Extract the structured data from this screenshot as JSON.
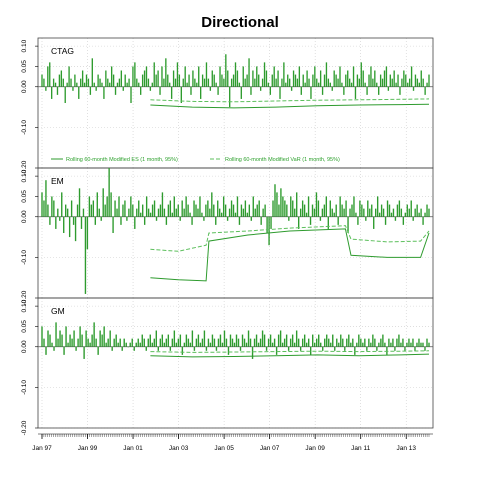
{
  "chart_data": {
    "type": "bar",
    "title": "Directional",
    "x_ticks": [
      "Jan 97",
      "Jan 99",
      "Jan 01",
      "Jan 03",
      "Jan 05",
      "Jan 07",
      "Jan 09",
      "Jan 11",
      "Jan 13"
    ],
    "x_range": [
      "1997-01",
      "2013-12"
    ],
    "grid": true,
    "series_style": {
      "bars": "#2e9b2e",
      "es": "#2e9b2e",
      "var": "#5cbf5c"
    },
    "legend": {
      "placement": "bottom of first panel",
      "es": "Rolling 60-month Modified ES (1 month, 95%)",
      "var": "Rolling 60-month Modified VaR (1 month, 95%)"
    },
    "panels": [
      {
        "name": "CTAG",
        "ylim": [
          -0.2,
          0.12
        ],
        "y_ticks": [
          "0.10",
          "0.05",
          "0.00",
          "-0.10",
          "-0.20"
        ],
        "y_tick_values": [
          0.1,
          0.05,
          0.0,
          -0.1,
          -0.2
        ],
        "returns": [
          0.03,
          0.02,
          -0.01,
          0.05,
          0.06,
          -0.03,
          0.02,
          0.01,
          -0.02,
          0.03,
          0.04,
          0.02,
          -0.04,
          0.01,
          0.05,
          0.02,
          -0.01,
          0.03,
          0.01,
          -0.03,
          0.02,
          0.04,
          0.01,
          0.03,
          0.02,
          -0.02,
          0.07,
          0.01,
          -0.01,
          0.03,
          0.02,
          0.01,
          -0.03,
          0.04,
          0.02,
          0.01,
          0.05,
          0.03,
          -0.02,
          0.01,
          0.02,
          0.04,
          -0.01,
          0.03,
          0.01,
          0.02,
          -0.04,
          0.05,
          0.06,
          0.02,
          0.01,
          -0.02,
          0.03,
          0.04,
          0.05,
          0.02,
          -0.01,
          0.01,
          0.06,
          0.03,
          0.04,
          -0.02,
          0.05,
          0.02,
          0.07,
          0.03,
          0.01,
          -0.03,
          0.04,
          0.02,
          0.06,
          0.03,
          -0.04,
          0.02,
          0.05,
          0.01,
          0.03,
          -0.02,
          0.04,
          0.02,
          0.01,
          0.05,
          -0.03,
          0.03,
          0.02,
          0.06,
          0.02,
          -0.01,
          0.04,
          0.03,
          0.01,
          -0.02,
          0.05,
          0.03,
          0.02,
          0.08,
          0.04,
          -0.05,
          0.02,
          0.03,
          0.06,
          0.04,
          0.01,
          -0.03,
          0.05,
          0.02,
          0.03,
          0.07,
          -0.02,
          0.04,
          0.02,
          0.05,
          0.03,
          -0.01,
          0.02,
          0.06,
          0.04,
          0.01,
          -0.02,
          0.03,
          0.05,
          0.02,
          0.04,
          -0.03,
          0.02,
          0.06,
          0.01,
          0.03,
          0.02,
          -0.01,
          0.04,
          0.03,
          0.02,
          0.05,
          -0.02,
          0.03,
          0.01,
          0.04,
          0.02,
          -0.03,
          0.03,
          0.05,
          0.02,
          0.01,
          0.04,
          -0.02,
          0.03,
          0.06,
          0.02,
          0.01,
          -0.01,
          0.04,
          0.03,
          0.02,
          0.05,
          0.01,
          -0.02,
          0.03,
          0.04,
          0.02,
          0.01,
          0.05,
          -0.03,
          0.03,
          0.02,
          0.06,
          0.04,
          0.01,
          -0.02,
          0.03,
          0.05,
          0.02,
          0.04,
          0.01,
          -0.02,
          0.03,
          0.02,
          0.04,
          0.05,
          -0.01,
          0.03,
          0.02,
          0.04,
          0.01,
          0.03,
          -0.02,
          0.02,
          0.04,
          0.03,
          0.01,
          0.02,
          0.05,
          -0.01,
          0.03,
          0.02,
          0.01,
          0.04,
          0.02,
          -0.02,
          0.01,
          0.03
        ],
        "es_points": [
          [
            0.0,
            -0.045
          ],
          [
            0.15,
            -0.05
          ],
          [
            0.3,
            -0.052
          ],
          [
            0.45,
            -0.05
          ],
          [
            0.6,
            -0.047
          ],
          [
            0.75,
            -0.045
          ],
          [
            0.9,
            -0.044
          ],
          [
            1.0,
            -0.043
          ]
        ],
        "var_points": [
          [
            0.0,
            -0.032
          ],
          [
            0.15,
            -0.036
          ],
          [
            0.3,
            -0.037
          ],
          [
            0.45,
            -0.035
          ],
          [
            0.6,
            -0.033
          ],
          [
            0.75,
            -0.032
          ],
          [
            0.9,
            -0.031
          ],
          [
            1.0,
            -0.03
          ]
        ]
      },
      {
        "name": "EM",
        "ylim": [
          -0.2,
          0.12
        ],
        "y_ticks": [
          "0.10",
          "0.05",
          "0.00",
          "-0.10",
          "-0.20"
        ],
        "y_tick_values": [
          0.1,
          0.05,
          0.0,
          -0.1,
          -0.2
        ],
        "returns": [
          0.06,
          0.04,
          0.09,
          0.03,
          -0.02,
          0.05,
          0.04,
          -0.03,
          0.02,
          -0.01,
          0.06,
          -0.04,
          0.03,
          0.02,
          -0.05,
          0.04,
          -0.02,
          -0.06,
          0.03,
          0.07,
          -0.03,
          0.02,
          -0.19,
          -0.08,
          0.05,
          0.03,
          0.04,
          -0.02,
          0.06,
          0.02,
          -0.01,
          0.07,
          0.03,
          0.05,
          0.12,
          0.06,
          -0.04,
          0.04,
          0.02,
          0.05,
          -0.02,
          0.03,
          0.04,
          -0.01,
          0.02,
          0.05,
          0.03,
          -0.03,
          0.02,
          0.04,
          0.01,
          0.03,
          -0.02,
          0.05,
          0.02,
          0.01,
          0.03,
          0.04,
          -0.01,
          0.02,
          0.03,
          0.06,
          0.02,
          -0.02,
          0.03,
          0.04,
          0.01,
          0.05,
          0.02,
          0.03,
          -0.01,
          0.04,
          0.02,
          0.05,
          0.03,
          0.01,
          -0.02,
          0.04,
          0.03,
          0.02,
          0.05,
          0.01,
          -0.01,
          0.03,
          0.04,
          0.02,
          0.06,
          0.03,
          -0.02,
          0.04,
          0.02,
          0.01,
          0.05,
          0.03,
          -0.01,
          0.02,
          0.04,
          0.03,
          0.01,
          0.05,
          -0.02,
          0.03,
          0.02,
          0.04,
          0.01,
          0.03,
          -0.01,
          0.05,
          0.02,
          0.03,
          0.04,
          -0.02,
          0.02,
          0.03,
          -0.04,
          -0.07,
          -0.03,
          0.04,
          0.08,
          0.06,
          0.03,
          0.07,
          0.05,
          0.04,
          0.03,
          -0.01,
          0.05,
          0.04,
          0.02,
          0.06,
          -0.03,
          0.02,
          0.04,
          0.03,
          0.01,
          0.05,
          -0.02,
          0.03,
          0.02,
          0.06,
          0.04,
          -0.01,
          0.02,
          0.03,
          0.05,
          -0.03,
          0.04,
          0.02,
          0.01,
          0.03,
          -0.02,
          0.05,
          0.03,
          0.02,
          0.04,
          -0.04,
          0.02,
          0.03,
          0.05,
          0.01,
          -0.02,
          0.04,
          0.03,
          0.02,
          -0.01,
          0.04,
          0.02,
          0.03,
          -0.03,
          0.02,
          0.05,
          0.01,
          0.03,
          0.02,
          -0.02,
          0.04,
          0.03,
          0.01,
          0.02,
          -0.01,
          0.03,
          0.04,
          0.02,
          -0.02,
          0.01,
          0.03,
          0.02,
          0.04,
          -0.01,
          0.02,
          0.03,
          0.01,
          0.02,
          -0.02,
          0.01,
          0.03,
          0.02
        ],
        "es_points": [
          [
            0.0,
            -0.15
          ],
          [
            0.1,
            -0.155
          ],
          [
            0.2,
            -0.158
          ],
          [
            0.21,
            -0.06
          ],
          [
            0.35,
            -0.045
          ],
          [
            0.5,
            -0.035
          ],
          [
            0.7,
            -0.03
          ],
          [
            0.72,
            -0.095
          ],
          [
            0.85,
            -0.1
          ],
          [
            0.97,
            -0.1
          ],
          [
            1.0,
            -0.04
          ]
        ],
        "var_points": [
          [
            0.0,
            -0.08
          ],
          [
            0.1,
            -0.085
          ],
          [
            0.2,
            -0.07
          ],
          [
            0.21,
            -0.04
          ],
          [
            0.35,
            -0.035
          ],
          [
            0.5,
            -0.028
          ],
          [
            0.7,
            -0.022
          ],
          [
            0.72,
            -0.055
          ],
          [
            0.85,
            -0.062
          ],
          [
            0.97,
            -0.06
          ],
          [
            1.0,
            -0.035
          ]
        ]
      },
      {
        "name": "GM",
        "ylim": [
          -0.2,
          0.12
        ],
        "y_ticks": [
          "0.10",
          "0.05",
          "0.00",
          "-0.10",
          "-0.20"
        ],
        "y_tick_values": [
          0.1,
          0.05,
          0.0,
          -0.1,
          -0.2
        ],
        "returns": [
          0.05,
          0.02,
          -0.02,
          0.04,
          0.03,
          0.01,
          -0.01,
          0.06,
          0.02,
          0.04,
          0.03,
          -0.02,
          0.05,
          0.01,
          0.03,
          0.02,
          0.04,
          -0.01,
          0.02,
          0.05,
          0.03,
          -0.03,
          0.04,
          0.02,
          0.01,
          0.03,
          0.06,
          0.02,
          -0.02,
          0.04,
          0.03,
          0.05,
          0.01,
          0.02,
          0.04,
          -0.01,
          0.02,
          0.03,
          0.01,
          0.02,
          -0.01,
          0.02,
          0.01,
          0.0,
          0.01,
          0.02,
          -0.01,
          0.01,
          0.02,
          0.01,
          0.03,
          0.02,
          -0.01,
          0.02,
          0.03,
          0.01,
          0.02,
          0.04,
          -0.01,
          0.02,
          0.03,
          0.01,
          0.02,
          0.03,
          -0.01,
          0.02,
          0.04,
          0.01,
          0.02,
          0.03,
          -0.02,
          0.01,
          0.03,
          0.02,
          0.01,
          0.04,
          -0.01,
          0.02,
          0.03,
          0.01,
          0.02,
          0.04,
          -0.01,
          0.02,
          0.01,
          0.03,
          0.02,
          -0.01,
          0.02,
          0.03,
          0.01,
          0.04,
          0.02,
          -0.02,
          0.03,
          0.02,
          0.01,
          0.03,
          0.02,
          -0.01,
          0.03,
          0.02,
          0.01,
          0.04,
          0.02,
          -0.03,
          0.02,
          0.03,
          0.01,
          0.02,
          0.04,
          0.03,
          -0.01,
          0.02,
          0.03,
          0.01,
          0.02,
          -0.02,
          0.03,
          0.04,
          0.01,
          0.02,
          0.03,
          -0.01,
          0.02,
          0.03,
          0.01,
          0.04,
          0.02,
          -0.01,
          0.02,
          0.03,
          0.01,
          0.02,
          -0.02,
          0.03,
          0.01,
          0.02,
          0.03,
          0.01,
          -0.01,
          0.02,
          0.03,
          0.02,
          0.01,
          0.03,
          -0.01,
          0.02,
          0.01,
          0.03,
          0.02,
          -0.01,
          0.02,
          0.03,
          0.01,
          0.02,
          -0.02,
          0.01,
          0.03,
          0.02,
          0.01,
          0.02,
          -0.01,
          0.02,
          0.01,
          0.03,
          0.02,
          -0.01,
          0.01,
          0.02,
          0.03,
          0.01,
          -0.02,
          0.02,
          0.01,
          0.02,
          -0.01,
          0.02,
          0.03,
          0.01,
          0.02,
          -0.01,
          0.01,
          0.02,
          0.01,
          0.02,
          -0.01,
          0.01,
          0.02,
          0.01,
          0.01,
          -0.01,
          0.02,
          0.01
        ],
        "es_points": [
          [
            0.0,
            -0.022
          ],
          [
            0.15,
            -0.025
          ],
          [
            0.3,
            -0.024
          ],
          [
            0.45,
            -0.022
          ],
          [
            0.6,
            -0.02
          ],
          [
            0.75,
            -0.022
          ],
          [
            0.9,
            -0.02
          ],
          [
            1.0,
            -0.018
          ]
        ],
        "var_points": [
          [
            0.0,
            -0.012
          ],
          [
            0.15,
            -0.014
          ],
          [
            0.3,
            -0.013
          ],
          [
            0.45,
            -0.012
          ],
          [
            0.6,
            -0.011
          ],
          [
            0.75,
            -0.012
          ],
          [
            0.9,
            -0.011
          ],
          [
            1.0,
            -0.01
          ]
        ]
      }
    ]
  }
}
